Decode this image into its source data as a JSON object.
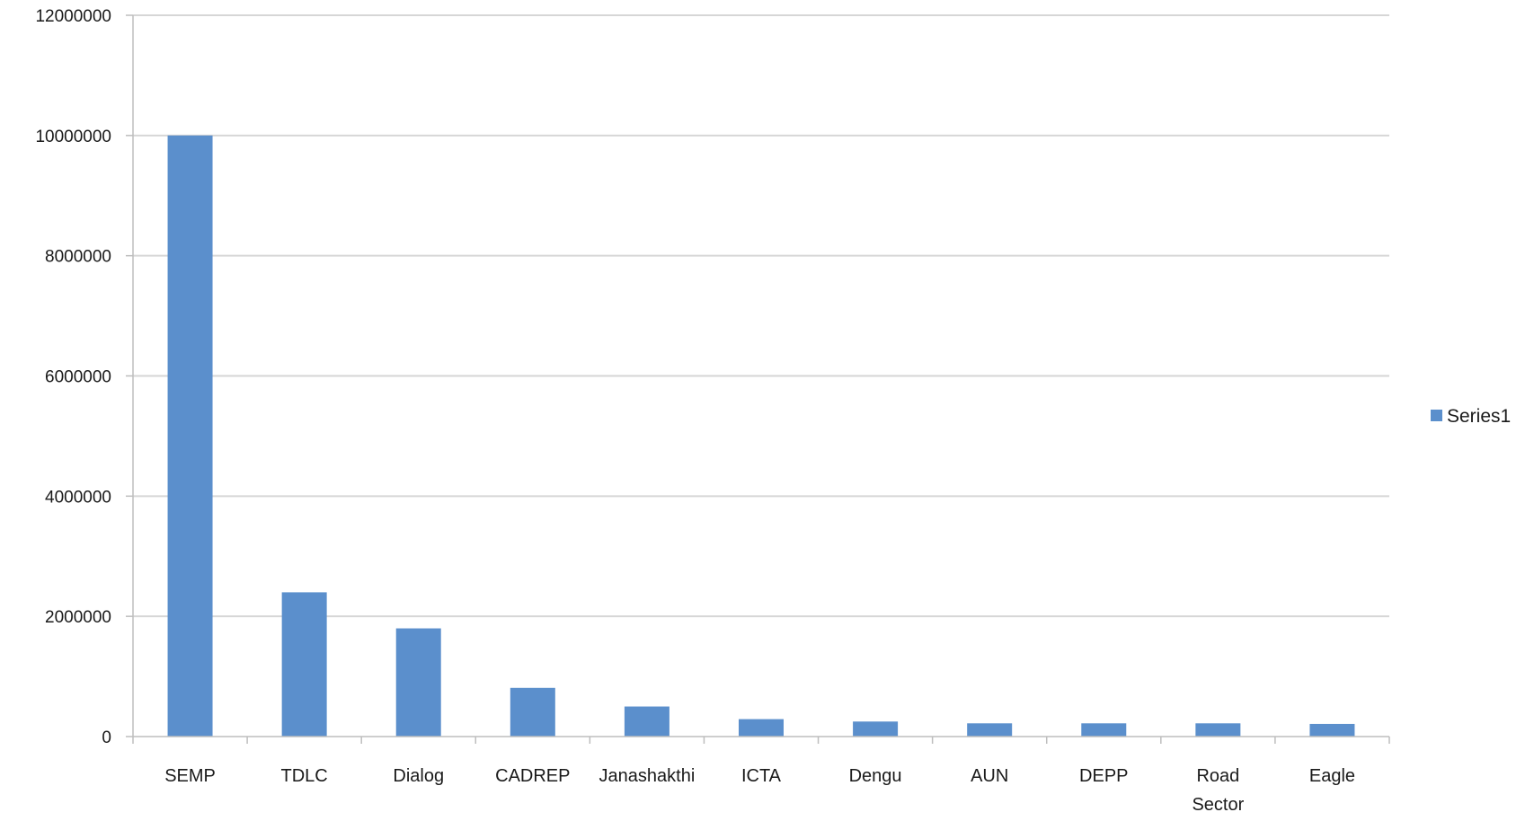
{
  "chart_data": {
    "type": "bar",
    "categories": [
      "SEMP",
      "TDLC",
      "Dialog",
      "CADREP",
      "Janashakthi",
      "ICTA",
      "Dengu",
      "AUN",
      "DEPP",
      "Road Sector",
      "Eagle"
    ],
    "category_lines": [
      [
        "SEMP"
      ],
      [
        "TDLC"
      ],
      [
        "Dialog"
      ],
      [
        "CADREP"
      ],
      [
        "Janashakthi"
      ],
      [
        "ICTA"
      ],
      [
        "Dengu"
      ],
      [
        "AUN"
      ],
      [
        "DEPP"
      ],
      [
        "Road",
        "Sector"
      ],
      [
        "Eagle"
      ]
    ],
    "series": [
      {
        "name": "Series1",
        "color": "#5B8FCC",
        "values": [
          10000000,
          2400000,
          1800000,
          810000,
          500000,
          290000,
          250000,
          220000,
          220000,
          220000,
          210000
        ]
      }
    ],
    "ylim": [
      0,
      12000000
    ],
    "yticks": [
      0,
      2000000,
      4000000,
      6000000,
      8000000,
      10000000,
      12000000
    ],
    "ytick_labels": [
      "0",
      "2000000",
      "4000000",
      "6000000",
      "8000000",
      "10000000",
      "12000000"
    ],
    "grid": true,
    "legend_position": "right",
    "title": "",
    "xlabel": "",
    "ylabel": ""
  },
  "colors": {
    "gridline": "#d6d6d6",
    "axis": "#bdbdbd"
  }
}
